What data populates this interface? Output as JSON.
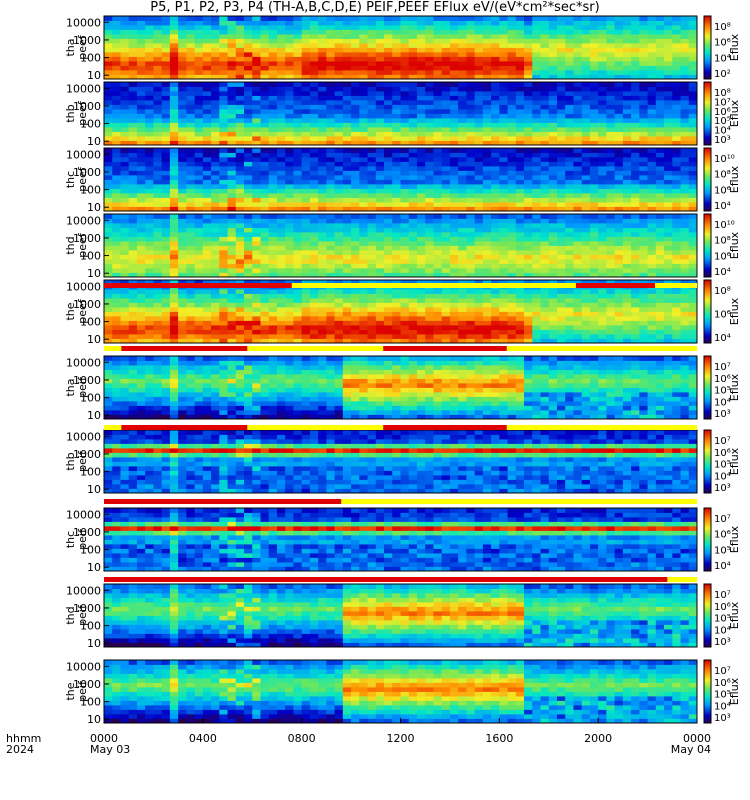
{
  "title": "P5, P1, P2, P3, P4 (TH-A,B,C,D,E) PEIF,PEEF EFlux eV/(eV*cm²*sec*sr)",
  "time_axis": {
    "row_label_1": "hhmm",
    "row_label_2": "2024",
    "ticks": [
      {
        "t": 0,
        "label": "0000",
        "sub": "May 03"
      },
      {
        "t": 4,
        "label": "0400",
        "sub": ""
      },
      {
        "t": 8,
        "label": "0800",
        "sub": ""
      },
      {
        "t": 12,
        "label": "1200",
        "sub": ""
      },
      {
        "t": 16,
        "label": "1600",
        "sub": ""
      },
      {
        "t": 20,
        "label": "2000",
        "sub": ""
      },
      {
        "t": 24,
        "label": "0000",
        "sub": "May 04"
      }
    ],
    "range_hours": [
      0,
      24
    ]
  },
  "colorbar_title": "Eflux",
  "chart_data": [
    {
      "type": "heatmap",
      "probe": "tha",
      "product": "peef",
      "ylabel_top": "tha",
      "ylabel_bottom": "peef",
      "y_ticks": [
        "10",
        "100",
        "1000",
        "10000"
      ],
      "cbar_ticks": [
        "10⁸",
        "10⁶",
        "10⁴",
        "10²"
      ],
      "scale": "log",
      "plasma_hours": [
        [
          17,
          24
        ]
      ]
    },
    {
      "type": "heatmap",
      "probe": "thb",
      "product": "peef",
      "ylabel_top": "thb",
      "ylabel_bottom": "peef",
      "y_ticks": [
        "10",
        "100",
        "1000",
        "10000"
      ],
      "cbar_ticks": [
        "10⁸",
        "10⁷",
        "10⁶",
        "10⁵",
        "10⁴",
        "10³"
      ],
      "scale": "log"
    },
    {
      "type": "heatmap",
      "probe": "thc",
      "product": "peef",
      "ylabel_top": "thc",
      "ylabel_bottom": "peef",
      "y_ticks": [
        "10",
        "100",
        "1000",
        "10000"
      ],
      "cbar_ticks": [
        "10¹⁰",
        "10⁸",
        "10⁶",
        "10⁴"
      ],
      "scale": "log"
    },
    {
      "type": "heatmap",
      "probe": "thd",
      "product": "peef",
      "ylabel_top": "thd",
      "ylabel_bottom": "peef",
      "y_ticks": [
        "10",
        "100",
        "1000",
        "10000"
      ],
      "cbar_ticks": [
        "10¹⁰",
        "10⁸",
        "10⁶",
        "10⁴"
      ],
      "scale": "log"
    },
    {
      "type": "heatmap",
      "probe": "the",
      "product": "peef",
      "ylabel_top": "the",
      "ylabel_bottom": "peef",
      "y_ticks": [
        "10",
        "100",
        "1000",
        "10000"
      ],
      "cbar_ticks": [
        "10⁸",
        "10⁶",
        "10⁴"
      ],
      "scale": "log"
    },
    {
      "type": "heatmap",
      "probe": "tha",
      "product": "peif",
      "ylabel_top": "tha",
      "ylabel_bottom": "peif",
      "y_ticks": [
        "10",
        "100",
        "1000",
        "10000"
      ],
      "cbar_ticks": [
        "10⁷",
        "10⁶",
        "10⁵",
        "10⁴",
        "10³"
      ],
      "scale": "log"
    },
    {
      "type": "heatmap",
      "probe": "thb",
      "product": "peif",
      "ylabel_top": "thb",
      "ylabel_bottom": "peif",
      "y_ticks": [
        "10",
        "100",
        "1000",
        "10000"
      ],
      "cbar_ticks": [
        "10⁷",
        "10⁶",
        "10⁵",
        "10⁴",
        "10³"
      ],
      "scale": "log"
    },
    {
      "type": "heatmap",
      "probe": "thc",
      "product": "peif",
      "ylabel_top": "thc",
      "ylabel_bottom": "peif",
      "y_ticks": [
        "10",
        "100",
        "1000",
        "10000"
      ],
      "cbar_ticks": [
        "10⁷",
        "10⁶",
        "10⁵",
        "10⁴"
      ],
      "scale": "log"
    },
    {
      "type": "heatmap",
      "probe": "thd",
      "product": "peif",
      "ylabel_top": "thd",
      "ylabel_bottom": "peif",
      "y_ticks": [
        "10",
        "100",
        "1000",
        "10000"
      ],
      "cbar_ticks": [
        "10⁷",
        "10⁶",
        "10⁵",
        "10⁴",
        "10³"
      ],
      "scale": "log"
    },
    {
      "type": "heatmap",
      "probe": "the",
      "product": "peif",
      "ylabel_top": "the",
      "ylabel_bottom": "peif",
      "y_ticks": [
        "10",
        "100",
        "1000",
        "10000"
      ],
      "cbar_ticks": [
        "10⁷",
        "10⁶",
        "10⁵",
        "10⁴",
        "10³"
      ],
      "scale": "log"
    }
  ],
  "mode_bars": [
    {
      "after_panel": 4,
      "red_hours": [
        [
          0,
          7.6
        ],
        [
          19.1,
          22.3
        ]
      ]
    },
    {
      "after_panel": 5,
      "red_hours": [
        [
          0.7,
          5.8
        ],
        [
          11.3,
          16.3
        ]
      ]
    },
    {
      "after_panel": 6,
      "red_hours": [
        [
          0.7,
          5.8
        ],
        [
          11.3,
          16.3
        ]
      ]
    },
    {
      "after_panel": 7,
      "red_hours": [
        [
          0,
          9.6
        ]
      ]
    },
    {
      "after_panel": 8,
      "red_hours": [
        [
          0,
          22.8
        ]
      ]
    }
  ]
}
